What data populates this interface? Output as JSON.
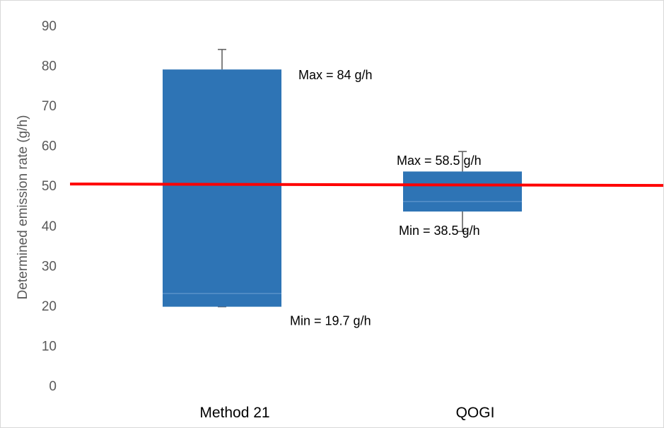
{
  "chart_data": {
    "type": "box",
    "title": "",
    "ylabel": "Determined emission rate (g/h)",
    "xlabel": "",
    "ylim": [
      0,
      90
    ],
    "yticks": [
      0,
      10,
      20,
      30,
      40,
      50,
      60,
      70,
      80,
      90
    ],
    "grid": false,
    "legend": "none",
    "categories": [
      "Method 21",
      "QOGI"
    ],
    "boxes": [
      {
        "category": "Method 21",
        "min": 19.7,
        "q1": 19.7,
        "median": 23,
        "q3": 79,
        "max": 84,
        "max_label": "Max = 84 g/h",
        "min_label": "Min = 19.7 g/h"
      },
      {
        "category": "QOGI",
        "min": 38.5,
        "q1": 43.5,
        "median": 46,
        "q3": 53.5,
        "max": 58.5,
        "max_label": "Max = 58.5 g/h",
        "min_label": "Min = 38.5 g/h"
      }
    ],
    "reference_line": {
      "value": 50.2
    },
    "colors": {
      "box": "#2e74b5",
      "reference": "#ff0000",
      "whisker": "#595959"
    }
  }
}
